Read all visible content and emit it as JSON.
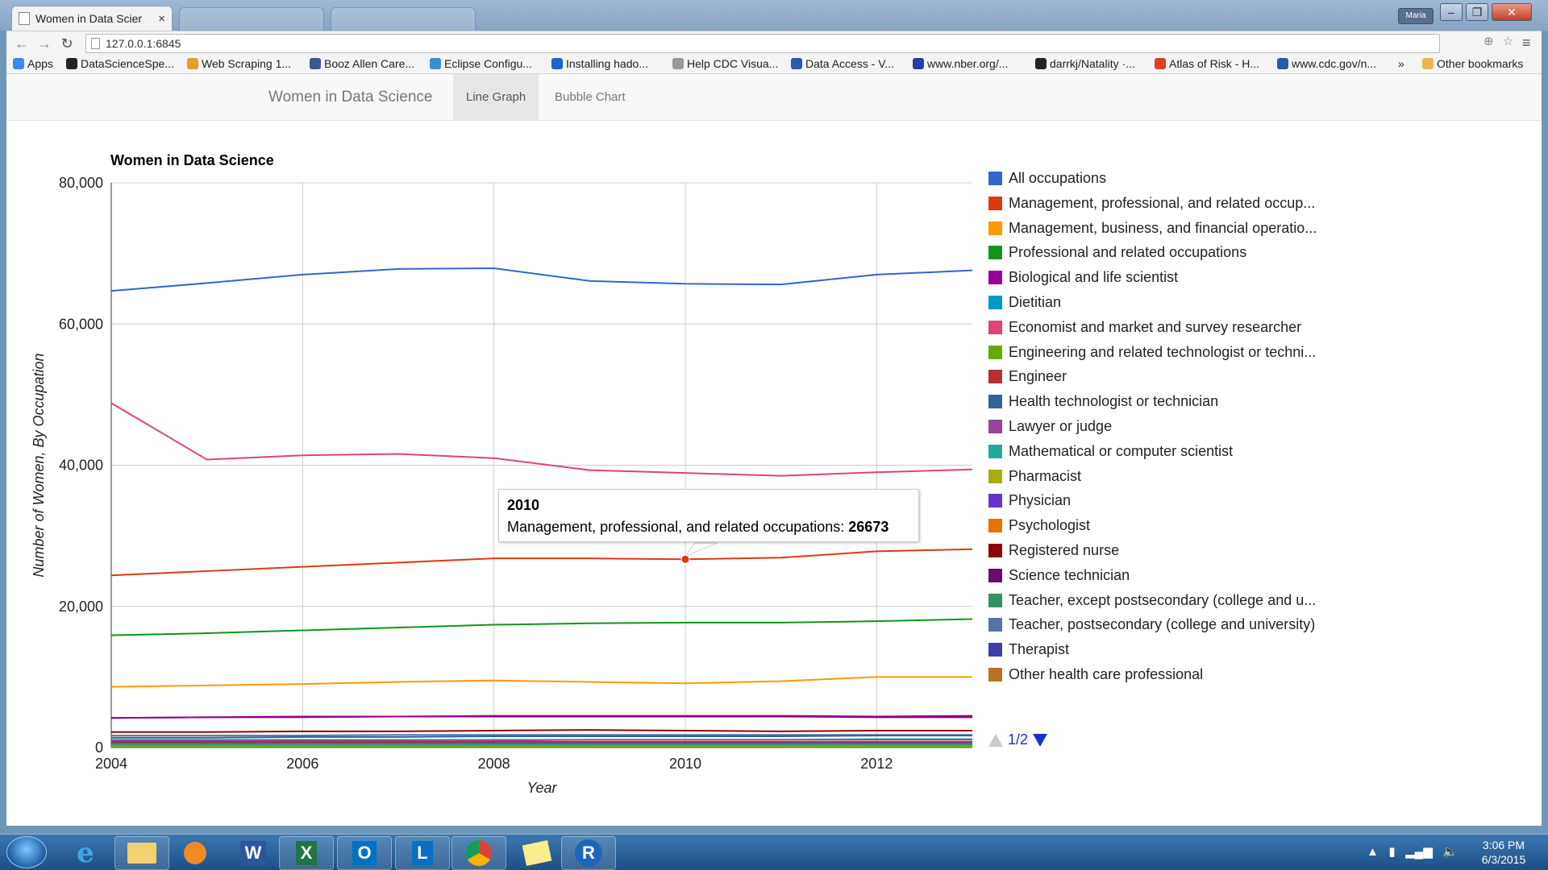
{
  "browser": {
    "tab_title": "Women in Data Scier",
    "tab_close": "×",
    "user": "Maria",
    "url": "127.0.0.1:6845",
    "bookmarks": [
      {
        "label": "Apps",
        "color": "#4285f4"
      },
      {
        "label": "DataScienceSpe...",
        "color": "#222222"
      },
      {
        "label": "Web Scraping 1...",
        "color": "#e0a030"
      },
      {
        "label": "Booz Allen Care...",
        "color": "#3a5a8a"
      },
      {
        "label": "Eclipse Configu...",
        "color": "#3c8dd0"
      },
      {
        "label": "Installing hado...",
        "color": "#2060d0"
      },
      {
        "label": "Help CDC Visua...",
        "color": "#999999"
      },
      {
        "label": "Data Access - V...",
        "color": "#2a5aa8"
      },
      {
        "label": "www.nber.org/...",
        "color": "#2a3ea8"
      },
      {
        "label": "darrkj/Natality ·...",
        "color": "#222222"
      },
      {
        "label": "Atlas of Risk - H...",
        "color": "#e04020"
      },
      {
        "label": "www.cdc.gov/n...",
        "color": "#2a5aa8"
      },
      {
        "label": "»",
        "color": ""
      },
      {
        "label": "Other bookmarks",
        "color": "#e6b84a"
      }
    ]
  },
  "navbar": {
    "brand": "Women in Data Science",
    "links": [
      "Line Graph",
      "Bubble Chart"
    ],
    "active": "Line Graph"
  },
  "chart_data": {
    "type": "line",
    "title": "Women in Data Science",
    "xlabel": "Year",
    "ylabel": "Number of Women, By Occupation",
    "xlim": [
      2004,
      2013
    ],
    "ylim": [
      0,
      80000
    ],
    "x_ticks": [
      "2004",
      "2006",
      "2008",
      "2010",
      "2012"
    ],
    "y_ticks": [
      "0",
      "20,000",
      "40,000",
      "60,000",
      "80,000"
    ],
    "x": [
      2004,
      2005,
      2006,
      2007,
      2008,
      2009,
      2010,
      2011,
      2012,
      2013
    ],
    "series": [
      {
        "name": "All occupations",
        "color": "#3366cc",
        "values": [
          64700,
          65800,
          67000,
          67800,
          67900,
          66100,
          65700,
          65600,
          67000,
          67600
        ]
      },
      {
        "name": "Management, professional, and related occup...",
        "color": "#dc3912",
        "values": [
          24400,
          25000,
          25600,
          26200,
          26800,
          26800,
          26673,
          26900,
          27800,
          28100
        ]
      },
      {
        "name": "Management, business, and financial operatio...",
        "color": "#ff9900",
        "values": [
          8600,
          8800,
          9000,
          9300,
          9500,
          9300,
          9100,
          9400,
          10000,
          10000
        ]
      },
      {
        "name": "Professional and related occupations",
        "color": "#109618",
        "values": [
          15900,
          16200,
          16600,
          17000,
          17400,
          17600,
          17700,
          17700,
          17900,
          18200
        ]
      },
      {
        "name": "Biological and life scientist",
        "color": "#990099",
        "values": [
          4200,
          4300,
          4400,
          4400,
          4500,
          4500,
          4500,
          4500,
          4400,
          4500
        ]
      },
      {
        "name": "Dietitian",
        "color": "#0099c6",
        "values": [
          500,
          500,
          500,
          500,
          500,
          500,
          500,
          500,
          500,
          500
        ]
      },
      {
        "name": "Economist and market and survey researcher",
        "color": "#dd4477",
        "values": [
          48800,
          40800,
          41400,
          41600,
          41000,
          39300,
          38900,
          38500,
          39000,
          39400
        ]
      },
      {
        "name": "Engineering and related technologist or techni...",
        "color": "#66aa00",
        "values": [
          300,
          300,
          300,
          300,
          300,
          300,
          300,
          300,
          300,
          300
        ]
      },
      {
        "name": "Engineer",
        "color": "#b82e2e",
        "values": [
          700,
          700,
          700,
          700,
          800,
          800,
          800,
          800,
          800,
          800
        ]
      },
      {
        "name": "Health technologist or technician",
        "color": "#316395",
        "values": [
          1400,
          1400,
          1500,
          1500,
          1600,
          1600,
          1600,
          1600,
          1700,
          1700
        ]
      },
      {
        "name": "Lawyer or judge",
        "color": "#994499",
        "values": [
          1000,
          1000,
          1000,
          1000,
          1000,
          1100,
          1100,
          1100,
          1100,
          1100
        ]
      },
      {
        "name": "Mathematical or computer scientist",
        "color": "#22aa99",
        "values": [
          1100,
          1100,
          1100,
          1100,
          1100,
          1100,
          1100,
          1100,
          1200,
          1200
        ]
      },
      {
        "name": "Pharmacist",
        "color": "#aaaa11",
        "values": [
          200,
          200,
          200,
          200,
          200,
          200,
          200,
          200,
          200,
          200
        ]
      },
      {
        "name": "Physician",
        "color": "#6633cc",
        "values": [
          600,
          600,
          600,
          600,
          600,
          600,
          600,
          600,
          600,
          600
        ]
      },
      {
        "name": "Psychologist",
        "color": "#e67300",
        "values": [
          400,
          400,
          400,
          400,
          400,
          400,
          400,
          400,
          400,
          400
        ]
      },
      {
        "name": "Registered nurse",
        "color": "#8b0707",
        "values": [
          2200,
          2200,
          2300,
          2300,
          2400,
          2500,
          2400,
          2300,
          2400,
          2400
        ]
      },
      {
        "name": "Science technician",
        "color": "#651067",
        "values": [
          4200,
          4300,
          4300,
          4400,
          4400,
          4400,
          4400,
          4400,
          4300,
          4300
        ]
      },
      {
        "name": "Teacher, except postsecondary (college and u...",
        "color": "#329262",
        "values": [
          100,
          100,
          100,
          100,
          100,
          100,
          100,
          100,
          100,
          100
        ]
      },
      {
        "name": "Teacher, postsecondary (college and university)",
        "color": "#5574a6",
        "values": [
          1700,
          1700,
          1700,
          1800,
          1800,
          1800,
          1800,
          1800,
          1800,
          1800
        ]
      },
      {
        "name": "Therapist",
        "color": "#3b3eac",
        "values": [
          800,
          800,
          800,
          800,
          800,
          800,
          800,
          800,
          800,
          800
        ]
      },
      {
        "name": "Other health care professional",
        "color": "#b77322",
        "values": [
          200,
          200,
          200,
          200,
          200,
          200,
          200,
          200,
          200,
          200
        ]
      }
    ],
    "legend_position": "right",
    "grid": true,
    "pager": "1/2",
    "tooltip": {
      "year": "2010",
      "label": "Management, professional, and related occupations:",
      "value": "26673"
    }
  },
  "taskbar": {
    "apps": [
      "internet-explorer",
      "file-explorer",
      "media-player",
      "word",
      "excel",
      "outlook",
      "lync",
      "chrome",
      "sticky-notes",
      "r"
    ],
    "time": "3:06 PM",
    "date": "6/3/2015"
  }
}
